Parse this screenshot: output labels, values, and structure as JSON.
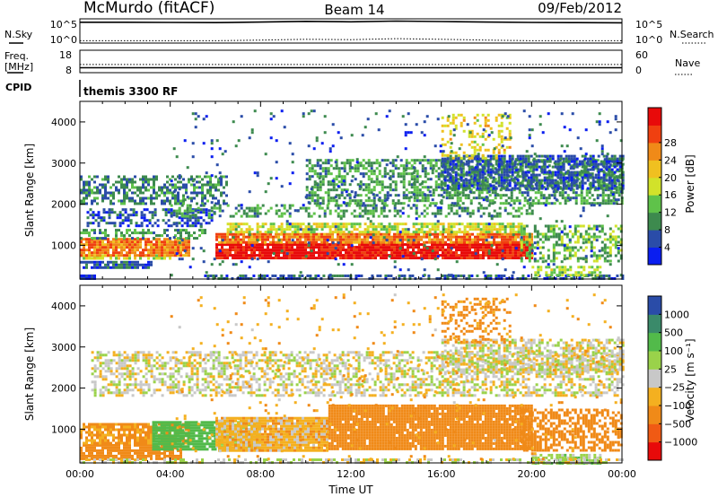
{
  "header": {
    "station": "McMurdo (fitACF)",
    "beam": "Beam 14",
    "date": "09/Feb/2012"
  },
  "status_panels": {
    "noise": {
      "left_label": "N.Sky",
      "right_label": "N.Search",
      "left_ticks": [
        "10^5",
        "10^0"
      ],
      "right_ticks": [
        "10^5",
        "10^0"
      ]
    },
    "freq": {
      "left_label_1": "Freq.",
      "left_label_2": "[MHz]",
      "right_label": "Nave",
      "left_ticks": [
        "18",
        "8"
      ],
      "right_ticks": [
        "60",
        "0"
      ]
    },
    "cpid": {
      "label": "CPID",
      "value": "themis 3300 RF"
    }
  },
  "colors": {
    "power_scale": [
      "#0a1ef0",
      "#2a4ca8",
      "#3d8a4e",
      "#5fc24a",
      "#d2e22a",
      "#f0c020",
      "#f08a18",
      "#f04010",
      "#e80a0a"
    ],
    "velocity_scale": [
      "#e80a0a",
      "#f05a14",
      "#f08a18",
      "#f4b020",
      "#c8c8c8",
      "#9ad24a",
      "#52ba4a",
      "#3a8a6a",
      "#2a4ca8"
    ],
    "ground_scatter": "#888888"
  },
  "chart_data": [
    {
      "type": "line",
      "name": "noise",
      "x_range_hours": [
        0,
        24
      ],
      "y_scale": "log",
      "series": [
        {
          "name": "N.Sky",
          "style": "solid",
          "x": [
            0,
            2,
            4,
            6,
            8,
            10,
            12,
            14,
            16,
            18,
            20,
            22,
            24
          ],
          "y": [
            20000,
            20000,
            18000,
            17000,
            22000,
            30000,
            25000,
            35000,
            28000,
            22000,
            18000,
            17000,
            15000
          ]
        },
        {
          "name": "N.Search",
          "style": "dotted",
          "x": [
            0,
            2,
            4,
            6,
            8,
            10,
            12,
            14,
            16,
            18,
            20,
            22,
            24
          ],
          "y": [
            3,
            3,
            3,
            3,
            4,
            6,
            5,
            8,
            6,
            4,
            3,
            3,
            3
          ]
        }
      ]
    },
    {
      "type": "line",
      "name": "freq_nave",
      "x_range_hours": [
        0,
        24
      ],
      "series": [
        {
          "name": "Freq.",
          "style": "solid",
          "units": "MHz",
          "x": [
            0,
            24
          ],
          "y": [
            10.2,
            10.2
          ]
        },
        {
          "name": "Nave",
          "style": "dotted",
          "x": [
            0,
            24
          ],
          "y": [
            22,
            22
          ]
        }
      ]
    },
    {
      "type": "heatmap",
      "name": "power",
      "xlabel": "",
      "ylabel": "Slant Range [km]",
      "x_range_hours": [
        0,
        24
      ],
      "ylim": [
        180,
        4500
      ],
      "yticks": [
        "1000",
        "2000",
        "3000",
        "4000"
      ],
      "colorbar": {
        "label": "Power [dB]",
        "ticks": [
          "4",
          "8",
          "12",
          "16",
          "20",
          "24",
          "28"
        ],
        "range": [
          0,
          32
        ]
      },
      "bands": [
        {
          "t0": 0,
          "t1": 0.7,
          "r0": 200,
          "r1": 290,
          "v": 2,
          "d": 0.9
        },
        {
          "t0": 0,
          "t1": 3.2,
          "r0": 480,
          "r1": 620,
          "v": 6,
          "d": 0.8
        },
        {
          "t0": 0,
          "t1": 4,
          "r0": 700,
          "r1": 780,
          "v": 16,
          "d": 0.7
        },
        {
          "t0": 0,
          "t1": 4.8,
          "r0": 780,
          "r1": 1180,
          "v": 24,
          "d": 0.9
        },
        {
          "t0": 0,
          "t1": 5.5,
          "r0": 1180,
          "r1": 1400,
          "v": 10,
          "d": 0.5
        },
        {
          "t0": 0.3,
          "t1": 6,
          "r0": 1500,
          "r1": 1900,
          "v": 5,
          "d": 0.45
        },
        {
          "t0": 0,
          "t1": 6.5,
          "r0": 2000,
          "r1": 2700,
          "v": 8,
          "d": 0.55
        },
        {
          "t0": 6,
          "t1": 20,
          "r0": 700,
          "r1": 1050,
          "v": 30,
          "d": 0.95
        },
        {
          "t0": 6,
          "t1": 20,
          "r0": 1050,
          "r1": 1300,
          "v": 24,
          "d": 0.9
        },
        {
          "t0": 6.5,
          "t1": 19.5,
          "r0": 1300,
          "r1": 1550,
          "v": 16,
          "d": 0.7
        },
        {
          "t0": 5.5,
          "t1": 24,
          "r0": 200,
          "r1": 290,
          "v": 6,
          "d": 0.6
        },
        {
          "t0": 4,
          "t1": 20,
          "r0": 1700,
          "r1": 2000,
          "v": 10,
          "d": 0.35
        },
        {
          "t0": 10,
          "t1": 24,
          "r0": 2000,
          "r1": 3100,
          "v": 10,
          "d": 0.55
        },
        {
          "t0": 16,
          "t1": 24,
          "r0": 2400,
          "r1": 3200,
          "v": 6,
          "d": 0.7
        },
        {
          "t0": 16,
          "t1": 19,
          "r0": 3100,
          "r1": 4200,
          "v": 18,
          "d": 0.3
        },
        {
          "t0": 19.5,
          "t1": 24,
          "r0": 600,
          "r1": 1500,
          "v": 12,
          "d": 0.5
        },
        {
          "t0": 20,
          "t1": 23,
          "r0": 250,
          "r1": 500,
          "v": 14,
          "d": 0.6
        },
        {
          "t0": 4,
          "t1": 24,
          "r0": 280,
          "r1": 4300,
          "v": 6,
          "d": 0.04
        }
      ]
    },
    {
      "type": "heatmap",
      "name": "velocity",
      "xlabel": "Time UT",
      "ylabel": "Slant Range [km]",
      "x_range_hours": [
        0,
        24
      ],
      "ylim": [
        180,
        4500
      ],
      "xticks": [
        "00:00",
        "04:00",
        "08:00",
        "12:00",
        "16:00",
        "20:00",
        "00:00"
      ],
      "yticks": [
        "1000",
        "2000",
        "3000",
        "4000"
      ],
      "colorbar": {
        "label": "Velocity [m s⁻¹]",
        "ticks": [
          "1000",
          "500",
          "100",
          "25",
          "−25",
          "−100",
          "−500",
          "−1000"
        ]
      },
      "bands": [
        {
          "t0": 0,
          "t1": 4.5,
          "r0": 300,
          "r1": 640,
          "v": -200,
          "d": 0.85
        },
        {
          "t0": 0,
          "t1": 4.8,
          "r0": 640,
          "r1": 1150,
          "v": -120,
          "d": 0.8
        },
        {
          "t0": 3.2,
          "t1": 6,
          "r0": 500,
          "r1": 1200,
          "v": 200,
          "d": 0.9
        },
        {
          "t0": 6,
          "t1": 8,
          "r0": 500,
          "r1": 1200,
          "v": 50,
          "d": 0.8
        },
        {
          "t0": 6,
          "t1": 11,
          "r0": 500,
          "r1": 1300,
          "v": -60,
          "d": 0.95
        },
        {
          "t0": 11,
          "t1": 20,
          "r0": 500,
          "r1": 1600,
          "v": -300,
          "d": 0.92
        },
        {
          "t0": 19.5,
          "t1": 24,
          "r0": 500,
          "r1": 1500,
          "v": -180,
          "d": 0.6
        },
        {
          "t0": 20,
          "t1": 23,
          "r0": 200,
          "r1": 400,
          "v": 60,
          "d": 0.8
        },
        {
          "t0": 0.5,
          "t1": 24,
          "r0": 1800,
          "r1": 2900,
          "v": 0,
          "d": 0.5
        },
        {
          "t0": 16,
          "t1": 24,
          "r0": 2400,
          "r1": 3200,
          "v": 0,
          "d": 0.55
        },
        {
          "t0": 16,
          "t1": 19,
          "r0": 3100,
          "r1": 4200,
          "v": -150,
          "d": 0.3
        },
        {
          "t0": 0,
          "t1": 24,
          "r0": 200,
          "r1": 290,
          "v": 10,
          "d": 0.5
        },
        {
          "t0": 4,
          "t1": 24,
          "r0": 280,
          "r1": 4300,
          "v": -80,
          "d": 0.03
        }
      ]
    }
  ]
}
